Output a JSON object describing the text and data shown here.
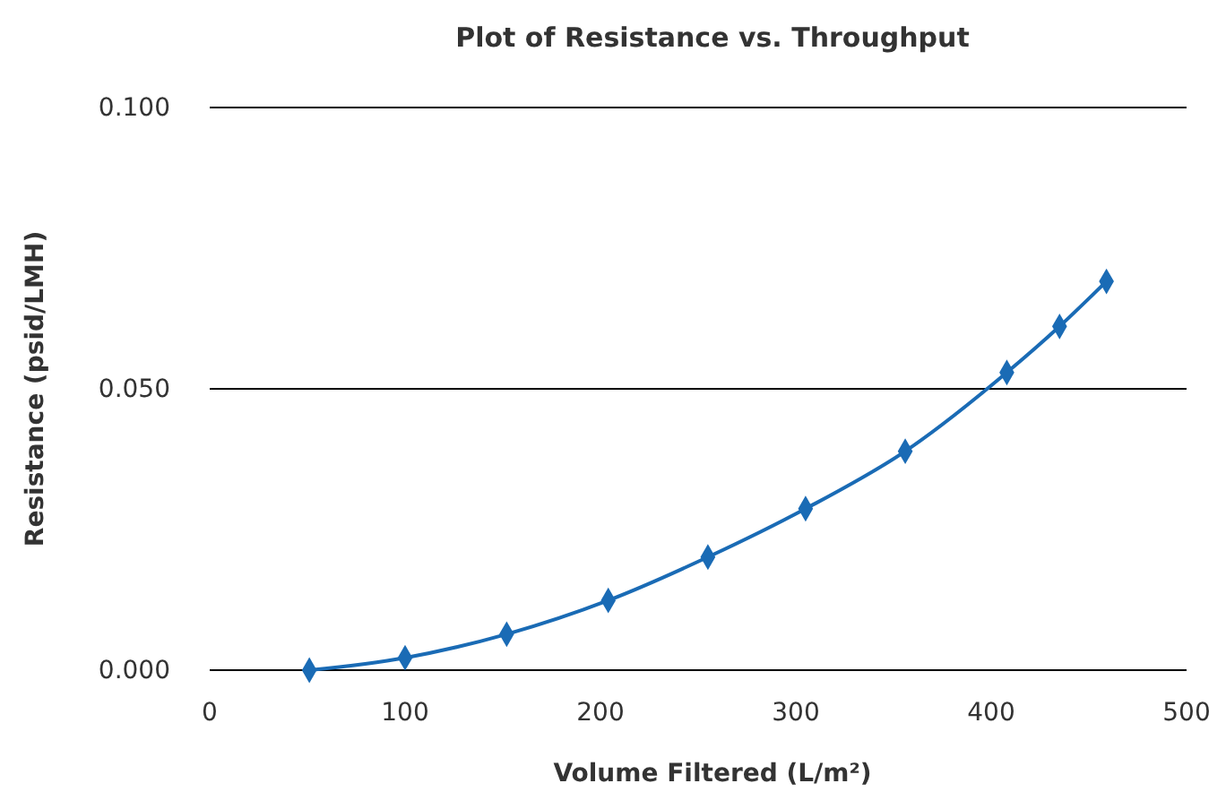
{
  "chart_data": {
    "type": "line",
    "title": "Plot of Resistance vs. Throughput",
    "xlabel": "Volume Filtered (L/m²)",
    "ylabel": "Resistance (psid/LMH)",
    "series": [
      {
        "color": "#1a6bb5",
        "x": [
          51,
          100,
          152,
          204,
          255,
          305,
          356,
          408,
          435,
          459
        ],
        "values": [
          0.0,
          0.0022,
          0.0064,
          0.0124,
          0.0201,
          0.0287,
          0.0389,
          0.0529,
          0.0611,
          0.0691
        ]
      }
    ],
    "xlim": [
      0,
      500
    ],
    "xticks": [
      0,
      100,
      200,
      300,
      400,
      500
    ],
    "ylim": [
      0,
      0.1
    ],
    "yticks": [
      {
        "value": 0,
        "label": "0.000"
      },
      {
        "value": 0.05,
        "label": "0.050"
      },
      {
        "value": 0.1,
        "label": "0.100"
      }
    ],
    "grid": "y",
    "marker": "diamond",
    "line_style": "solid"
  }
}
